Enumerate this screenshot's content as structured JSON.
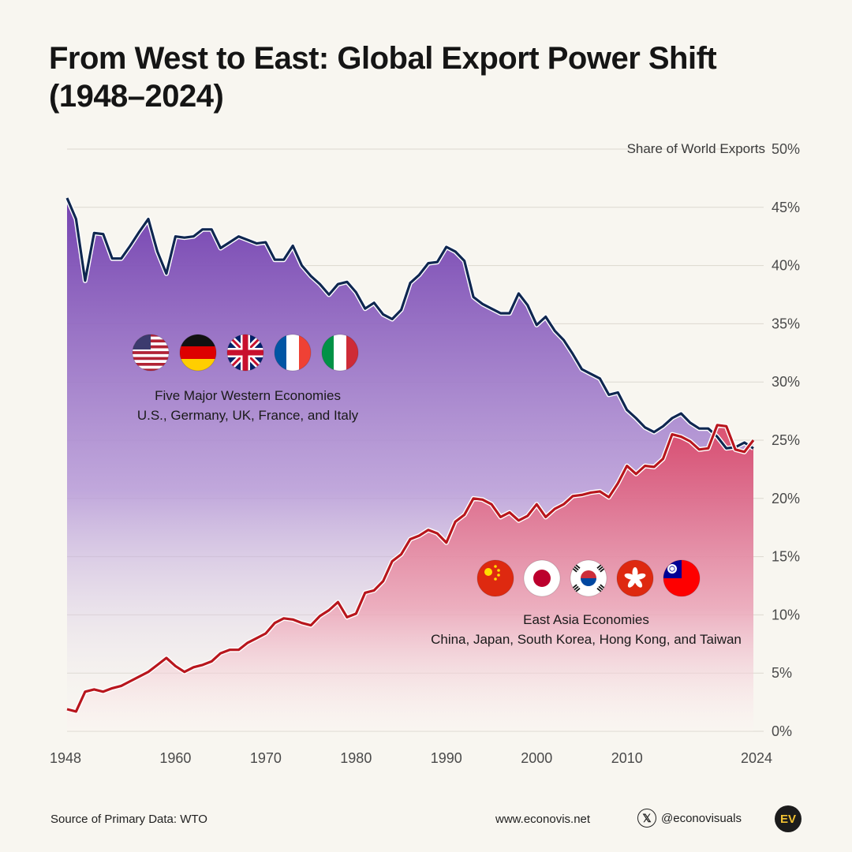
{
  "header": {
    "title_line1": "From West to East: Global Export Power Shift",
    "title_line2": "(1948–2024)"
  },
  "chart_data": {
    "type": "area",
    "title": "From West to East: Global Export Power Shift (1948–2024)",
    "ylabel": "Share of World Exports",
    "xlabel": "",
    "xlim": [
      1948,
      2024
    ],
    "ylim": [
      0,
      50
    ],
    "x_ticks": [
      "1948",
      "1960",
      "1970",
      "1980",
      "1990",
      "2000",
      "2010",
      "2024"
    ],
    "y_ticks": [
      "0%",
      "5%",
      "10%",
      "15%",
      "20%",
      "25%",
      "30%",
      "35%",
      "40%",
      "45%",
      "50%"
    ],
    "grid": true,
    "series": [
      {
        "label_title": "Five Major Western Economies",
        "label_subtitle": "U.S., Germany, UK, France, and Italy",
        "flags": [
          "us-flag",
          "germany-flag",
          "uk-flag",
          "france-flag",
          "italy-flag"
        ],
        "line_color": "#0f2750",
        "fill_color": "#7d4fb6",
        "x": [
          1948,
          1949,
          1950,
          1951,
          1952,
          1953,
          1954,
          1955,
          1956,
          1957,
          1958,
          1959,
          1960,
          1961,
          1962,
          1963,
          1964,
          1965,
          1966,
          1967,
          1968,
          1969,
          1970,
          1971,
          1972,
          1973,
          1974,
          1975,
          1976,
          1977,
          1978,
          1979,
          1980,
          1981,
          1982,
          1983,
          1984,
          1985,
          1986,
          1987,
          1988,
          1989,
          1990,
          1991,
          1992,
          1993,
          1994,
          1995,
          1996,
          1997,
          1998,
          1999,
          2000,
          2001,
          2002,
          2003,
          2004,
          2005,
          2006,
          2007,
          2008,
          2009,
          2010,
          2011,
          2012,
          2013,
          2014,
          2015,
          2016,
          2017,
          2018,
          2019,
          2020,
          2021,
          2022,
          2023,
          2024
        ],
        "values": [
          45.8,
          44.0,
          38.7,
          42.8,
          42.7,
          40.6,
          40.6,
          41.7,
          42.9,
          44.0,
          41.2,
          39.3,
          42.5,
          42.4,
          42.5,
          43.1,
          43.1,
          41.5,
          42.0,
          42.5,
          42.2,
          41.9,
          42.0,
          40.5,
          40.5,
          41.7,
          40.0,
          39.1,
          38.4,
          37.5,
          38.4,
          38.6,
          37.7,
          36.3,
          36.8,
          35.8,
          35.4,
          36.2,
          38.5,
          39.2,
          40.2,
          40.3,
          41.6,
          41.2,
          40.4,
          37.3,
          36.7,
          36.3,
          35.9,
          35.9,
          37.6,
          36.6,
          34.9,
          35.6,
          34.4,
          33.6,
          32.4,
          31.1,
          30.7,
          30.3,
          28.9,
          29.1,
          27.6,
          26.9,
          26.1,
          25.7,
          26.2,
          26.9,
          27.3,
          26.5,
          26.0,
          26.0,
          25.3,
          24.3,
          24.4,
          24.8,
          24.3
        ]
      },
      {
        "label_title": "East Asia Economies",
        "label_subtitle": "China, Japan, South Korea, Hong Kong, and Taiwan",
        "flags": [
          "china-flag",
          "japan-flag",
          "south-korea-flag",
          "hong-kong-flag",
          "taiwan-flag"
        ],
        "line_color": "#b8161d",
        "fill_color": "#d64f6f",
        "x": [
          1948,
          1949,
          1950,
          1951,
          1952,
          1953,
          1954,
          1955,
          1956,
          1957,
          1958,
          1959,
          1960,
          1961,
          1962,
          1963,
          1964,
          1965,
          1966,
          1967,
          1968,
          1969,
          1970,
          1971,
          1972,
          1973,
          1974,
          1975,
          1976,
          1977,
          1978,
          1979,
          1980,
          1981,
          1982,
          1983,
          1984,
          1985,
          1986,
          1987,
          1988,
          1989,
          1990,
          1991,
          1992,
          1993,
          1994,
          1995,
          1996,
          1997,
          1998,
          1999,
          2000,
          2001,
          2002,
          2003,
          2004,
          2005,
          2006,
          2007,
          2008,
          2009,
          2010,
          2011,
          2012,
          2013,
          2014,
          2015,
          2016,
          2017,
          2018,
          2019,
          2020,
          2021,
          2022,
          2023,
          2024
        ],
        "values": [
          1.9,
          1.7,
          3.4,
          3.6,
          3.4,
          3.7,
          3.9,
          4.3,
          4.7,
          5.1,
          5.7,
          6.3,
          5.6,
          5.1,
          5.5,
          5.7,
          6.0,
          6.7,
          7.0,
          7.0,
          7.6,
          8.0,
          8.4,
          9.3,
          9.7,
          9.6,
          9.3,
          9.1,
          9.9,
          10.4,
          11.1,
          9.8,
          10.1,
          11.9,
          12.1,
          12.9,
          14.6,
          15.2,
          16.5,
          16.8,
          17.3,
          17.0,
          16.2,
          18.0,
          18.6,
          20.0,
          19.9,
          19.5,
          18.4,
          18.8,
          18.1,
          18.5,
          19.5,
          18.4,
          19.1,
          19.5,
          20.2,
          20.3,
          20.5,
          20.6,
          20.1,
          21.3,
          22.8,
          22.1,
          22.8,
          22.7,
          23.4,
          25.5,
          25.3,
          24.9,
          24.2,
          24.3,
          26.3,
          26.2,
          24.2,
          24.0,
          25.0
        ]
      }
    ]
  },
  "footer": {
    "source": "Source of Primary Data: WTO",
    "website": "www.econovis.net",
    "x_icon_glyph": "𝕏",
    "handle": "@econovisuals",
    "logo_text": "EV"
  }
}
